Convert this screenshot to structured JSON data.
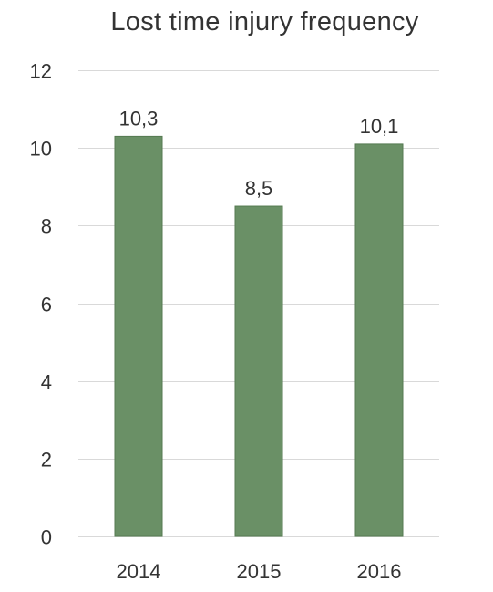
{
  "chart_data": {
    "type": "bar",
    "title": "Lost time injury frequency",
    "categories": [
      "2014",
      "2015",
      "2016"
    ],
    "values": [
      10.3,
      8.5,
      10.1
    ],
    "data_labels": [
      "10,3",
      "8,5",
      "10,1"
    ],
    "ylim": [
      0,
      12
    ],
    "yticks": [
      0,
      2,
      4,
      6,
      8,
      10,
      12
    ],
    "xlabel": "",
    "ylabel": "",
    "grid": true,
    "legend": "none",
    "bar_color": "#6a9066",
    "bar_edge_color": "#557a51",
    "grid_color": "#d9d9d9",
    "text_color": "#333333"
  }
}
